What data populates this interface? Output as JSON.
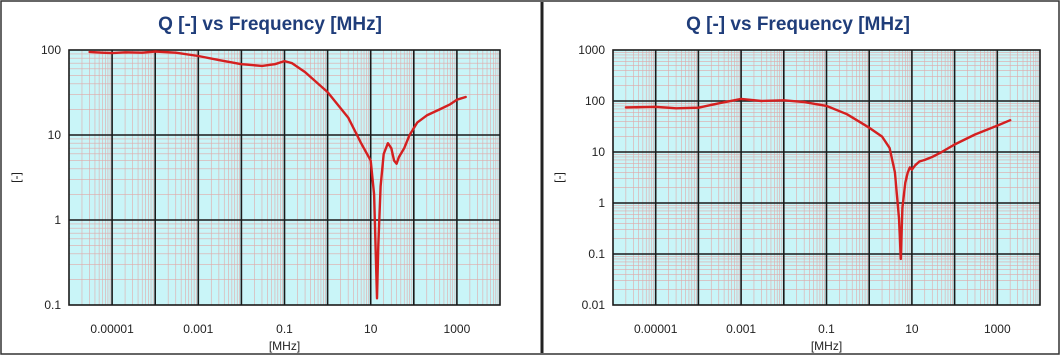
{
  "chart_data": [
    {
      "type": "line",
      "title": "Q [-] vs Frequency [MHz]",
      "xlabel": "[MHz]",
      "ylabel": "[-]",
      "x_scale": "log",
      "y_scale": "log",
      "xlim": [
        1e-06,
        10000
      ],
      "ylim": [
        0.1,
        100
      ],
      "x_ticks": [
        "0.00001",
        "0.001",
        "0.1",
        "10",
        "1000"
      ],
      "y_ticks": [
        "0.1",
        "1",
        "10",
        "100"
      ],
      "grid": true,
      "line_color": "#d42020",
      "plot_background": "#c9f5f8",
      "series": [
        {
          "x": [
            3e-06,
            6e-06,
            1e-05,
            2e-05,
            5e-05,
            0.0001,
            0.0003,
            0.001,
            0.003,
            0.01,
            0.03,
            0.06,
            0.1,
            0.15,
            0.3,
            1,
            3,
            6,
            10,
            12,
            14,
            15,
            17,
            20,
            25,
            30,
            35,
            40,
            45,
            50,
            60,
            80,
            120,
            200,
            400,
            700,
            1000,
            1600
          ],
          "y": [
            95,
            93,
            92,
            94,
            93,
            96,
            93,
            85,
            76,
            68,
            65,
            68,
            74,
            70,
            55,
            32,
            16,
            8,
            5,
            2,
            0.12,
            0.5,
            2.5,
            6,
            8,
            7,
            5,
            4.6,
            5.5,
            6,
            7,
            10,
            14,
            17,
            20,
            23,
            26,
            28
          ]
        }
      ]
    },
    {
      "type": "line",
      "title": "Q [-] vs Frequency [MHz]",
      "xlabel": "[MHz]",
      "ylabel": "[-]",
      "x_scale": "log",
      "y_scale": "log",
      "xlim": [
        1e-06,
        10000
      ],
      "ylim": [
        0.01,
        1000
      ],
      "x_ticks": [
        "0.00001",
        "0.001",
        "0.1",
        "10",
        "1000"
      ],
      "y_ticks": [
        "0.01",
        "0.1",
        "1",
        "10",
        "100",
        "1000"
      ],
      "grid": true,
      "line_color": "#d42020",
      "plot_background": "#c9f5f8",
      "series": [
        {
          "x": [
            2e-06,
            5e-06,
            1e-05,
            3e-05,
            0.0001,
            0.0003,
            0.001,
            0.003,
            0.01,
            0.03,
            0.1,
            0.3,
            1,
            2,
            3,
            4,
            5,
            5.5,
            6,
            7,
            8,
            9,
            10,
            12,
            15,
            20,
            30,
            50,
            100,
            300,
            1000,
            2000
          ],
          "y": [
            75,
            76,
            77,
            72,
            74,
            90,
            110,
            100,
            103,
            95,
            80,
            55,
            30,
            20,
            12,
            4,
            0.5,
            0.08,
            0.8,
            2.5,
            4,
            5,
            4.5,
            5.5,
            6.5,
            7,
            8,
            10,
            14,
            22,
            33,
            42
          ]
        }
      ]
    }
  ]
}
